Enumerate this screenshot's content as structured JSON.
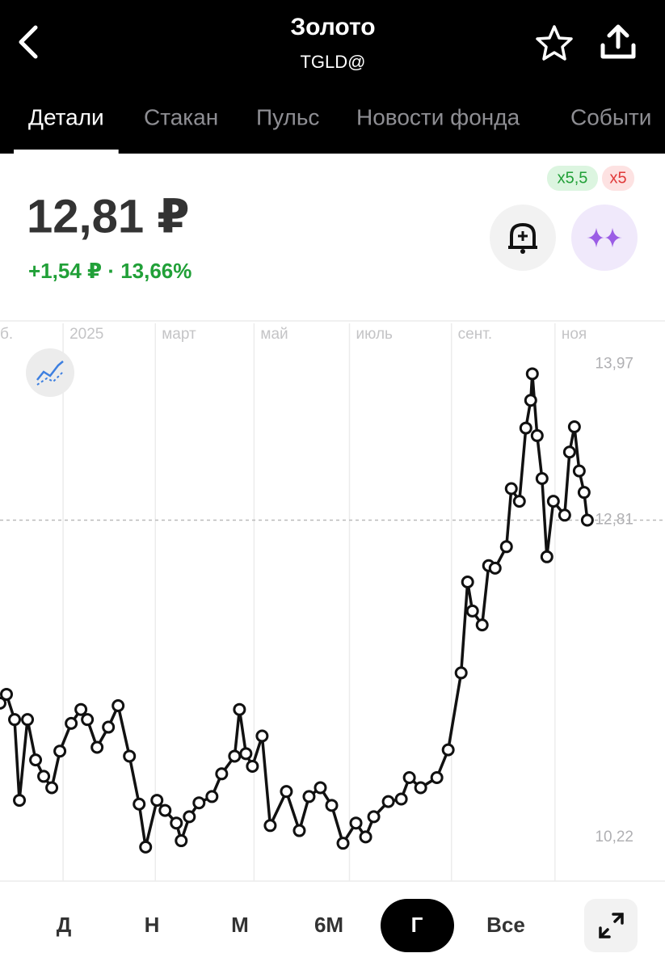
{
  "header": {
    "title": "Золото",
    "subtitle": "TGLD@"
  },
  "tabs": [
    "Детали",
    "Стакан",
    "Пульс",
    "Новости фонда",
    "Событи"
  ],
  "active_tab": 0,
  "badges": [
    "x5,5",
    "x5"
  ],
  "price": "12,81 ₽",
  "change": "+1,54 ₽ · 13,66%",
  "chart_data": {
    "type": "line",
    "color": "#111111",
    "x": [
      0,
      4,
      9,
      12,
      17,
      22,
      27,
      32,
      37,
      44,
      50,
      54,
      60,
      67,
      73,
      80,
      86,
      90,
      97,
      102,
      109,
      112,
      117,
      123,
      131,
      137,
      145,
      148,
      152,
      156,
      162,
      167,
      177,
      185,
      191,
      198,
      205,
      212,
      220,
      226,
      231,
      240,
      248,
      253,
      260,
      270,
      277,
      285,
      289,
      292,
      298,
      302,
      306,
      313,
      316,
      321,
      325,
      328,
      329,
      332,
      335,
      338,
      342,
      349,
      352,
      355,
      358,
      361,
      363
    ],
    "values": [
      11.36,
      11.43,
      11.23,
      10.59,
      11.23,
      10.91,
      10.78,
      10.69,
      10.98,
      11.2,
      11.31,
      11.23,
      11.01,
      11.17,
      11.34,
      10.94,
      10.56,
      10.22,
      10.59,
      10.51,
      10.41,
      10.27,
      10.46,
      10.57,
      10.62,
      10.8,
      10.94,
      11.31,
      10.96,
      10.86,
      11.1,
      10.39,
      10.66,
      10.35,
      10.62,
      10.69,
      10.55,
      10.25,
      10.41,
      10.3,
      10.46,
      10.58,
      10.6,
      10.77,
      10.69,
      10.77,
      10.99,
      11.6,
      12.32,
      12.09,
      11.98,
      12.45,
      12.43,
      12.6,
      13.06,
      12.96,
      13.54,
      13.76,
      13.97,
      13.48,
      13.14,
      12.52,
      12.96,
      12.85,
      13.35,
      13.55,
      13.2,
      13.03,
      12.81
    ],
    "xlim": [
      0,
      411
    ],
    "xticks": [
      {
        "value": -4,
        "label": "б."
      },
      {
        "value": 39,
        "label": "2025"
      },
      {
        "value": 96,
        "label": "март"
      },
      {
        "value": 157,
        "label": "май"
      },
      {
        "value": 216,
        "label": "июль"
      },
      {
        "value": 279,
        "label": "сент."
      },
      {
        "value": 343,
        "label": "ноя"
      }
    ],
    "ylim": [
      9.95,
      14.37
    ],
    "yticks": [
      {
        "value": 13.97,
        "label": "13,97"
      },
      {
        "value": 12.81,
        "label": "12,81"
      },
      {
        "value": 10.22,
        "label": "10,22"
      }
    ]
  },
  "periods": [
    "Д",
    "Н",
    "М",
    "6М",
    "Г",
    "Все"
  ],
  "selected_period": 4
}
